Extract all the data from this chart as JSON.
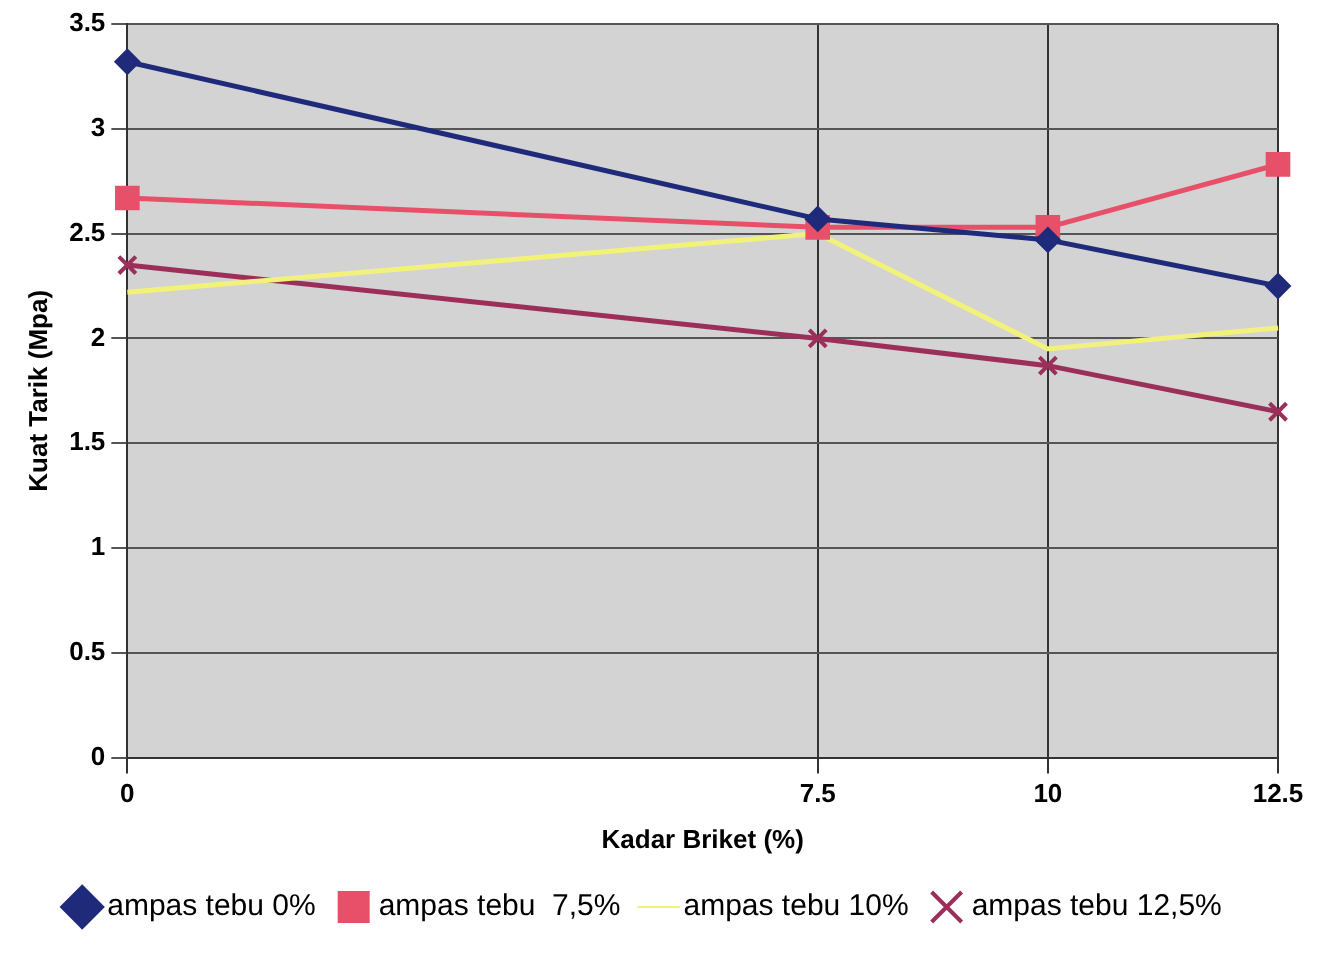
{
  "chart_data": {
    "type": "line",
    "xlabel": "Kadar Briket (%)",
    "ylabel": "Kuat Tarik (Mpa)",
    "x": [
      0,
      7.5,
      10,
      12.5
    ],
    "xlim": [
      0,
      12.5
    ],
    "xticks": [
      0,
      7.5,
      10,
      12.5
    ],
    "ylim": [
      0,
      3.5
    ],
    "yticks": [
      0,
      0.5,
      1,
      1.5,
      2,
      2.5,
      3,
      3.5
    ],
    "grid": true,
    "legend": "bottom",
    "series": [
      {
        "name": "ampas tebu 0%",
        "color": "#1f2a7a",
        "marker": "diamond",
        "values": [
          3.32,
          2.57,
          2.47,
          2.25
        ]
      },
      {
        "name": "ampas tebu  7,5%",
        "color": "#e8506a",
        "marker": "square",
        "values": [
          2.67,
          2.53,
          2.53,
          2.83
        ]
      },
      {
        "name": "ampas tebu 10%",
        "color": "#f2f27a",
        "marker": "none",
        "values": [
          2.22,
          2.5,
          1.95,
          2.05
        ]
      },
      {
        "name": "ampas tebu 12,5%",
        "color": "#9c2f5a",
        "marker": "cross",
        "values": [
          2.35,
          2.0,
          1.87,
          1.65
        ]
      }
    ]
  }
}
